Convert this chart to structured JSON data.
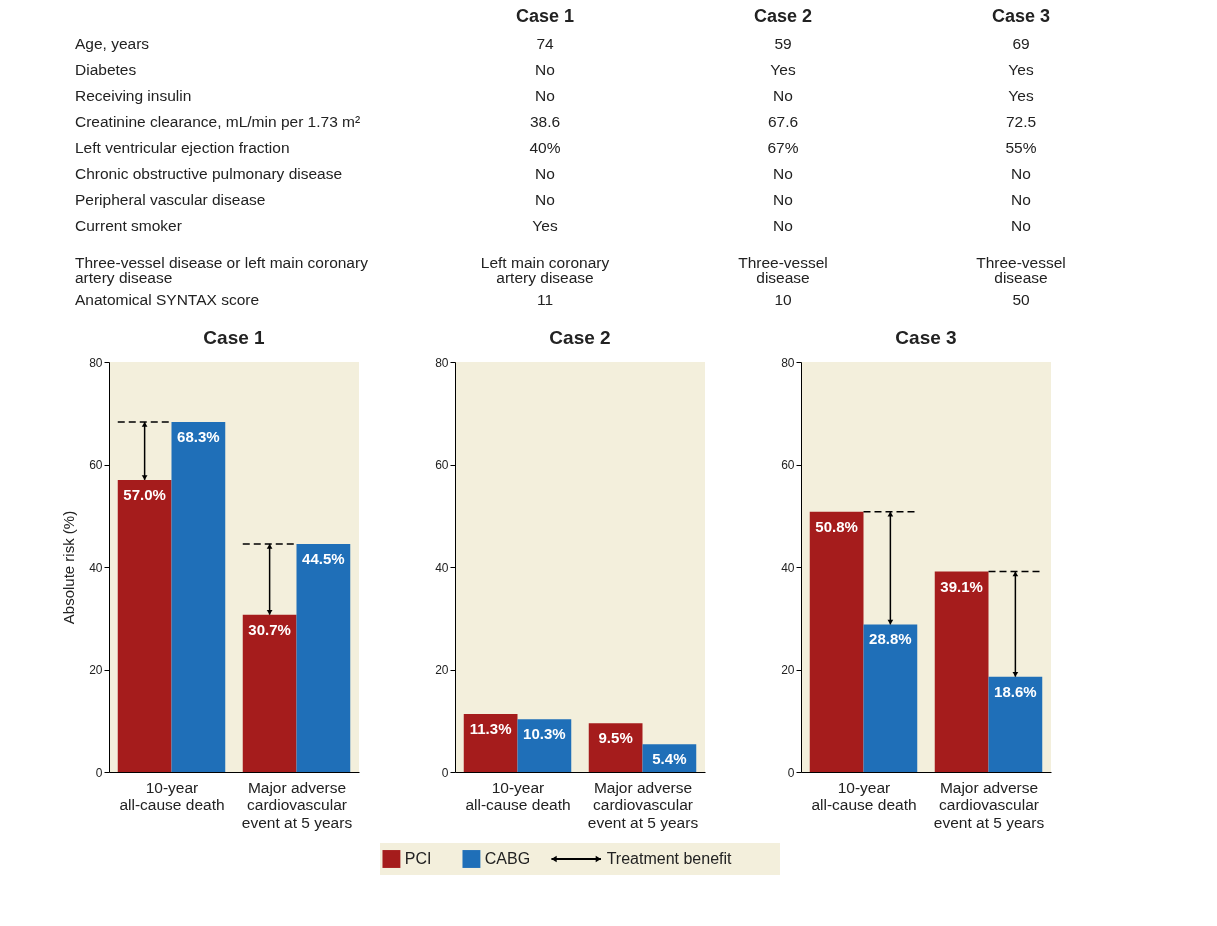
{
  "chart_data": [
    {
      "type": "other",
      "categories": [
        "Case 1",
        "Case 2",
        "Case 3"
      ],
      "y_categories": [
        "Age, years",
        "Diabetes",
        "Receiving insulin",
        "Creatinine clearance, mL/min per 1.73 m²",
        "Left ventricular ejection fraction",
        "Chronic obstructive pulmonary disease",
        "Peripheral vascular disease",
        "Current smoker",
        "Three-vessel disease or left main coronary artery disease",
        "Anatomical SYNTAX score"
      ],
      "cell_labels": [
        [
          "74",
          "59",
          "69"
        ],
        [
          "No",
          "Yes",
          "Yes"
        ],
        [
          "No",
          "No",
          "Yes"
        ],
        [
          "38.6",
          "67.6",
          "72.5"
        ],
        [
          "40%",
          "67%",
          "55%"
        ],
        [
          "No",
          "No",
          "No"
        ],
        [
          "No",
          "No",
          "No"
        ],
        [
          "Yes",
          "No",
          "No"
        ],
        [
          "Left main coronary artery disease",
          "Three-vessel disease",
          "Three-vessel disease"
        ],
        [
          "11",
          "10",
          "50"
        ]
      ]
    },
    {
      "type": "bar",
      "title": "Case 1",
      "ylabel": "Absolute risk (%)",
      "categories": [
        "10-year all-cause death",
        "Major adverse cardiovascular event at 5 years"
      ],
      "ylim": [
        0,
        80
      ],
      "yticks": [
        0,
        20,
        40,
        60,
        80
      ],
      "series": [
        {
          "color": "#a51c1c",
          "values": [
            57.0,
            30.7
          ],
          "value_labels": [
            "57.0%",
            "30.7%"
          ]
        },
        {
          "color": "#1f6fb8",
          "values": [
            68.3,
            44.5
          ],
          "value_labels": [
            "68.3%",
            "44.5%"
          ]
        }
      ],
      "ref_lines": [
        {
          "axis": "y",
          "value": 68.3,
          "line_style": "dashed"
        },
        {
          "axis": "y",
          "value": 44.5,
          "line_style": "dashed"
        }
      ]
    },
    {
      "type": "bar",
      "title": "Case 2",
      "categories": [
        "10-year all-cause death",
        "Major adverse cardiovascular event at 5 years"
      ],
      "ylim": [
        0,
        80
      ],
      "yticks": [
        0,
        20,
        40,
        60,
        80
      ],
      "legend": "bottom",
      "series": [
        {
          "name": "PCI",
          "color": "#a51c1c",
          "values": [
            11.3,
            9.5
          ],
          "value_labels": [
            "11.3%",
            "9.5%"
          ]
        },
        {
          "name": "CABG",
          "color": "#1f6fb8",
          "values": [
            10.3,
            5.4
          ],
          "value_labels": [
            "10.3%",
            "5.4%"
          ]
        }
      ],
      "annotations": [
        "Treatment benefit"
      ]
    },
    {
      "type": "bar",
      "title": "Case 3",
      "categories": [
        "10-year all-cause death",
        "Major adverse cardiovascular event at 5 years"
      ],
      "ylim": [
        0,
        80
      ],
      "yticks": [
        0,
        20,
        40,
        60,
        80
      ],
      "series": [
        {
          "color": "#a51c1c",
          "values": [
            50.8,
            39.1
          ],
          "value_labels": [
            "50.8%",
            "39.1%"
          ]
        },
        {
          "color": "#1f6fb8",
          "values": [
            28.8,
            18.6
          ],
          "value_labels": [
            "28.8%",
            "18.6%"
          ]
        }
      ],
      "ref_lines": [
        {
          "axis": "y",
          "value": 50.8,
          "line_style": "dashed"
        },
        {
          "axis": "y",
          "value": 39.1,
          "line_style": "dashed"
        }
      ]
    }
  ]
}
